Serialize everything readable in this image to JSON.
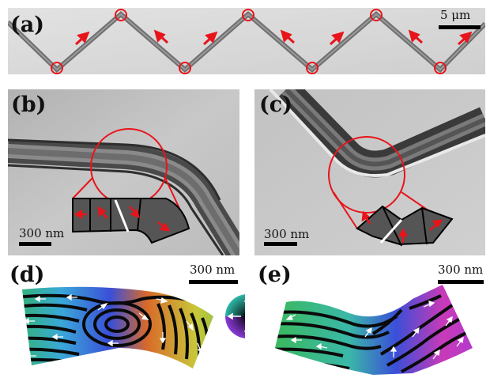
{
  "figure": {
    "panels": {
      "a": {
        "label": "(a)",
        "scalebar": "5 μm"
      },
      "b": {
        "label": "(b)",
        "scalebar": "300 nm"
      },
      "c": {
        "label": "(c)",
        "scalebar": "300 nm"
      },
      "d": {
        "label": "(d)",
        "scalebar": "300 nm"
      },
      "e": {
        "label": "(e)",
        "scalebar": "300 nm"
      }
    },
    "colors": {
      "highlight": "#e8141b",
      "wire": "#555555",
      "background_tem": "#c9c9c9"
    },
    "icons": [
      "magnetization-arrow-icon",
      "color-wheel-icon",
      "circle-marker-icon"
    ]
  }
}
